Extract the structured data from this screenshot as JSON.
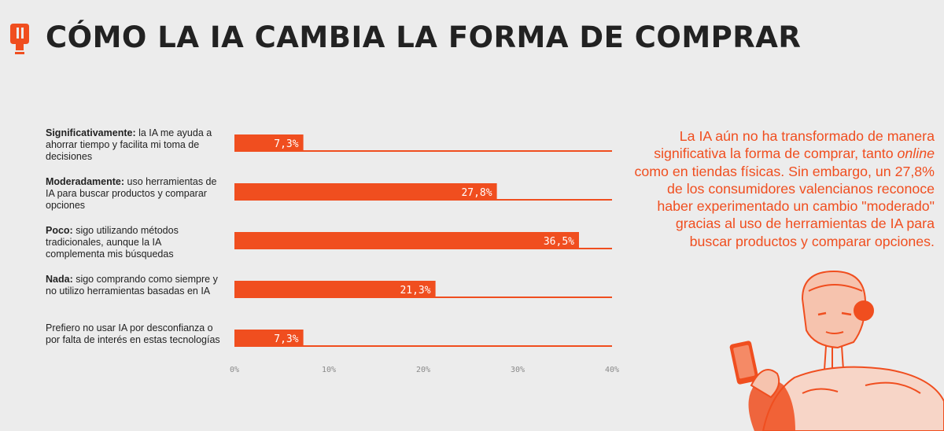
{
  "header": {
    "title": "CÓMO LA IA CAMBIA LA FORMA DE COMPRAR",
    "logo_icon": "brand-logo-icon"
  },
  "colors": {
    "accent": "#f04e1f",
    "text": "#222222",
    "background": "#ececec",
    "axis_text": "#8a8a8a"
  },
  "chart_data": {
    "type": "bar",
    "orientation": "horizontal",
    "categories": [
      {
        "lead": "Significativamente:",
        "rest": " la IA me ayuda a ahorrar tiempo y facilita mi toma de decisiones"
      },
      {
        "lead": "Moderadamente:",
        "rest": " uso herramientas de IA para buscar productos y comparar opciones"
      },
      {
        "lead": "Poco:",
        "rest": " sigo utilizando métodos tradicionales, aunque la IA complementa mis búsquedas"
      },
      {
        "lead": "Nada:",
        "rest": " sigo comprando como siempre y no utilizo herramientas basadas en IA"
      },
      {
        "lead": "",
        "rest": "Prefiero no usar IA por desconfianza o por falta de interés en estas tecnologías"
      }
    ],
    "values": [
      7.3,
      27.8,
      36.5,
      21.3,
      7.3
    ],
    "data_labels": [
      "7,3%",
      "27,8%",
      "36,5%",
      "21,3%",
      "7,3%"
    ],
    "xlim": [
      0,
      40
    ],
    "x_ticks": [
      "0%",
      "10%",
      "20%",
      "30%",
      "40%"
    ],
    "grid": false
  },
  "description": {
    "before": "La IA aún no ha transformado de manera significativa la forma de comprar, tanto ",
    "em": "online",
    "after": " como en tiendas físicas. Sin embargo, un 27,8% de los consumidores valencianos reconoce haber experimentado un cambio \"moderado\" gracias al uso de herramientas de IA para buscar productos y comparar opciones."
  },
  "illustration": {
    "icon": "robot-holding-phone-illustration"
  }
}
